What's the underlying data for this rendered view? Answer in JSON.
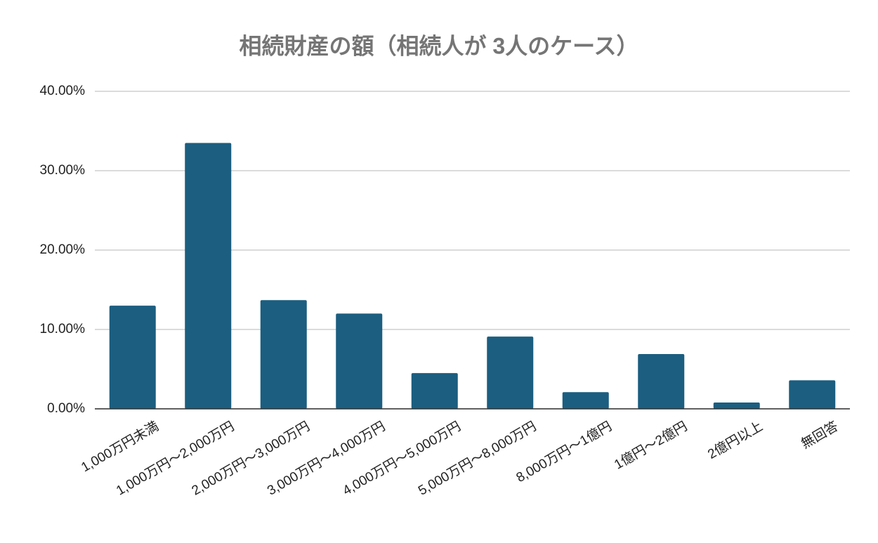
{
  "chart_data": {
    "type": "bar",
    "title": "相続財産の額（相続人が 3人のケース）",
    "categories": [
      "1,000万円未満",
      "1,000万円～2,000万円",
      "2,000万円～3,000万円",
      "3,000万円～4,000万円",
      "4,000万円～5,000万円",
      "5,000万円～8,000万円",
      "8,000万円～1億円",
      "1億円～2億円",
      "2億円以上",
      "無回答"
    ],
    "values": [
      13.0,
      33.5,
      13.7,
      12.0,
      4.5,
      9.1,
      2.1,
      6.9,
      0.8,
      3.6
    ],
    "color": "#1b5e80",
    "ylim": [
      0,
      40
    ],
    "yticks": [
      {
        "value": 0,
        "label": "0.00%"
      },
      {
        "value": 10,
        "label": "10.00%"
      },
      {
        "value": 20,
        "label": "20.00%"
      },
      {
        "value": 30,
        "label": "30.00%"
      },
      {
        "value": 40,
        "label": "40.00%"
      }
    ],
    "grid": true
  }
}
